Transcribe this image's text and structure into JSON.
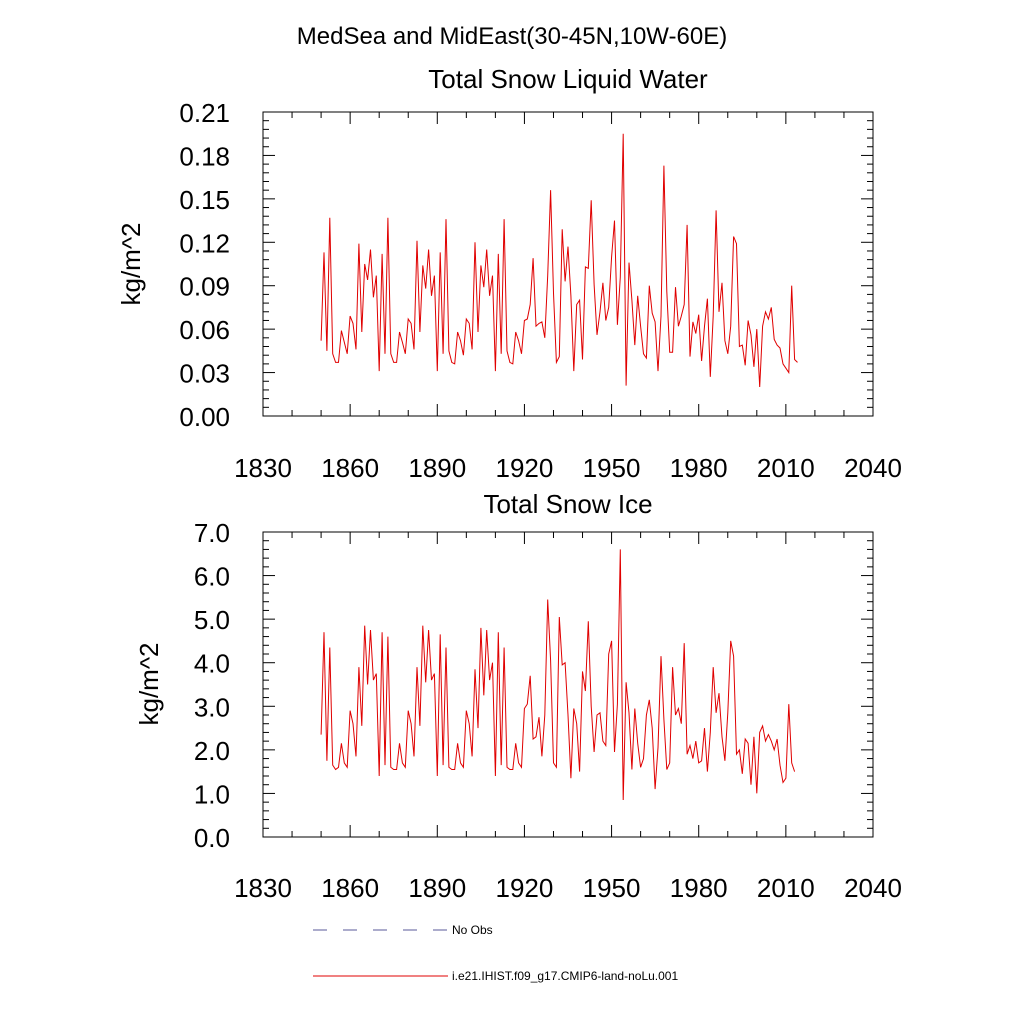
{
  "figure_title": "MedSea and MidEast(30-45N,10W-60E)",
  "legend": [
    {
      "label": "No Obs",
      "style": "dashed",
      "color": "#5a5a9a"
    },
    {
      "label": "i.e21.IHIST.f09_g17.CMIP6-land-noLu.001",
      "style": "solid",
      "color": "#e00000"
    }
  ],
  "chart_data": [
    {
      "type": "line",
      "title": "Total Snow Liquid Water",
      "xlabel": "",
      "ylabel": "kg/m^2",
      "xlim": [
        1830,
        2040
      ],
      "ylim": [
        0,
        0.21
      ],
      "xticks": [
        1830,
        1860,
        1890,
        1920,
        1950,
        1980,
        2010,
        2040
      ],
      "yticks": [
        "0.00",
        "0.03",
        "0.06",
        "0.09",
        "0.12",
        "0.15",
        "0.18",
        "0.21"
      ],
      "series_color": "#e00000",
      "x_start": 1850,
      "values": [
        0.052,
        0.113,
        0.045,
        0.137,
        0.043,
        0.037,
        0.037,
        0.059,
        0.051,
        0.043,
        0.069,
        0.064,
        0.046,
        0.119,
        0.058,
        0.105,
        0.094,
        0.115,
        0.082,
        0.097,
        0.031,
        0.112,
        0.043,
        0.137,
        0.043,
        0.037,
        0.037,
        0.058,
        0.051,
        0.043,
        0.067,
        0.064,
        0.046,
        0.121,
        0.058,
        0.104,
        0.088,
        0.115,
        0.083,
        0.097,
        0.031,
        0.113,
        0.043,
        0.136,
        0.045,
        0.037,
        0.036,
        0.058,
        0.052,
        0.042,
        0.067,
        0.064,
        0.046,
        0.12,
        0.058,
        0.104,
        0.089,
        0.115,
        0.083,
        0.097,
        0.031,
        0.112,
        0.043,
        0.136,
        0.045,
        0.037,
        0.036,
        0.058,
        0.052,
        0.043,
        0.066,
        0.067,
        0.077,
        0.109,
        0.062,
        0.064,
        0.065,
        0.054,
        0.097,
        0.156,
        0.085,
        0.037,
        0.041,
        0.129,
        0.093,
        0.117,
        0.083,
        0.031,
        0.077,
        0.08,
        0.039,
        0.103,
        0.102,
        0.149,
        0.091,
        0.056,
        0.072,
        0.092,
        0.066,
        0.075,
        0.11,
        0.135,
        0.063,
        0.096,
        0.195,
        0.021,
        0.106,
        0.08,
        0.049,
        0.083,
        0.062,
        0.043,
        0.04,
        0.09,
        0.071,
        0.065,
        0.031,
        0.069,
        0.173,
        0.086,
        0.044,
        0.044,
        0.089,
        0.062,
        0.069,
        0.077,
        0.132,
        0.041,
        0.065,
        0.057,
        0.07,
        0.038,
        0.062,
        0.081,
        0.027,
        0.069,
        0.142,
        0.072,
        0.092,
        0.052,
        0.043,
        0.062,
        0.124,
        0.119,
        0.048,
        0.049,
        0.035,
        0.066,
        0.056,
        0.034,
        0.06,
        0.02,
        0.062,
        0.072,
        0.067,
        0.075,
        0.053,
        0.049,
        0.047,
        0.036,
        0.033,
        0.03,
        0.09,
        0.039,
        0.037
      ]
    },
    {
      "type": "line",
      "title": "Total Snow Ice",
      "xlabel": "",
      "ylabel": "kg/m^2",
      "xlim": [
        1830,
        2040
      ],
      "ylim": [
        0,
        7.0
      ],
      "xticks": [
        1830,
        1860,
        1890,
        1920,
        1950,
        1980,
        2010,
        2040
      ],
      "yticks": [
        "0.0",
        "1.0",
        "2.0",
        "3.0",
        "4.0",
        "5.0",
        "6.0",
        "7.0"
      ],
      "series_color": "#e00000",
      "x_start": 1850,
      "values": [
        2.35,
        4.7,
        1.75,
        4.35,
        1.65,
        1.55,
        1.6,
        2.15,
        1.7,
        1.6,
        2.9,
        2.6,
        1.85,
        3.9,
        2.55,
        4.85,
        3.5,
        4.75,
        3.6,
        3.75,
        1.4,
        4.7,
        1.65,
        4.6,
        1.6,
        1.55,
        1.55,
        2.15,
        1.7,
        1.6,
        2.9,
        2.6,
        1.85,
        3.9,
        2.55,
        4.85,
        3.55,
        4.75,
        3.6,
        3.75,
        1.4,
        4.65,
        1.65,
        4.35,
        1.6,
        1.55,
        1.55,
        2.15,
        1.7,
        1.6,
        2.9,
        2.6,
        1.85,
        3.85,
        2.5,
        4.8,
        3.25,
        4.75,
        3.6,
        4.0,
        1.4,
        4.7,
        1.65,
        4.35,
        1.6,
        1.55,
        1.55,
        2.15,
        1.7,
        1.6,
        2.95,
        3.05,
        3.7,
        2.25,
        2.3,
        2.75,
        1.85,
        2.8,
        5.45,
        4.05,
        1.7,
        1.6,
        5.05,
        3.95,
        4.0,
        2.8,
        1.35,
        2.95,
        2.6,
        1.5,
        3.8,
        3.35,
        4.95,
        3.0,
        1.95,
        2.8,
        2.85,
        2.2,
        2.1,
        4.2,
        4.5,
        1.95,
        3.05,
        6.6,
        0.85,
        3.55,
        2.85,
        1.55,
        2.95,
        2.15,
        1.6,
        1.8,
        2.8,
        3.15,
        2.5,
        1.1,
        2.05,
        4.15,
        2.7,
        1.55,
        1.7,
        3.9,
        2.8,
        2.95,
        2.6,
        4.45,
        1.9,
        2.1,
        1.8,
        2.2,
        1.7,
        1.75,
        2.5,
        1.5,
        2.4,
        3.9,
        2.85,
        3.3,
        2.3,
        1.75,
        2.85,
        4.5,
        4.15,
        1.9,
        2.0,
        1.45,
        2.25,
        2.15,
        1.2,
        2.3,
        1.0,
        2.4,
        2.55,
        2.2,
        2.35,
        2.2,
        2.0,
        2.25,
        1.65,
        1.25,
        1.35,
        3.05,
        1.7,
        1.5
      ]
    }
  ]
}
